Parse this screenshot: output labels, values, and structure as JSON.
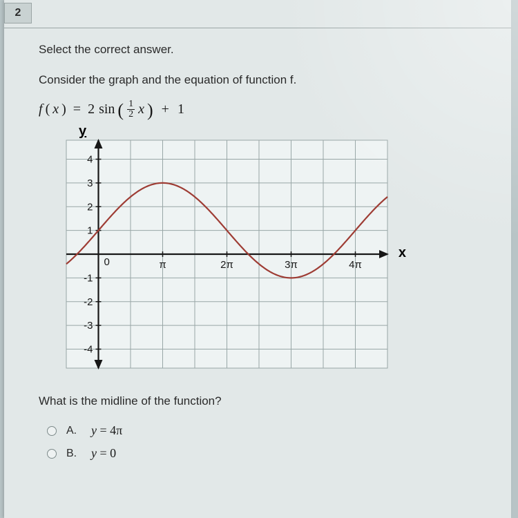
{
  "question_number": "2",
  "prompt": "Select the correct answer.",
  "subprompt": "Consider the graph and the equation of function f.",
  "equation": {
    "lhs_var": "f",
    "lhs_arg": "x",
    "eq": "=",
    "coef": "2",
    "func": "sin",
    "frac_num": "1",
    "frac_den": "2",
    "inner_var": "x",
    "plus": "+",
    "shift": "1"
  },
  "chart": {
    "type": "line",
    "y_axis_label": "y",
    "x_axis_label": "x",
    "plot_bg": "#eef3f3",
    "grid_color": "#98a6a6",
    "axis_color": "#171717",
    "curve_color": "#9e3c34",
    "curve_width": 2.2,
    "x_min_units": -0.5,
    "x_max_units": 4.5,
    "y_min": -4.8,
    "y_max": 4.8,
    "y_ticks": [
      4,
      3,
      2,
      1,
      -1,
      -2,
      -3,
      -4
    ],
    "y_tick_labels": [
      "4",
      "3",
      "2",
      "1",
      "-1",
      "-2",
      "-3",
      "-4"
    ],
    "x_ticks_units": [
      0,
      1,
      2,
      3,
      4
    ],
    "x_tick_labels": [
      "0",
      "π",
      "2π",
      "3π",
      "4π"
    ],
    "amplitude": 2,
    "vshift": 1,
    "period_units": 4
  },
  "question2": "What is the midline of the function?",
  "options": [
    {
      "letter": "A.",
      "text_var": "y",
      "text_eq": " = 4",
      "text_suffix_pi": "π"
    },
    {
      "letter": "B.",
      "text_var": "y",
      "text_eq": " = 0",
      "text_suffix_pi": ""
    }
  ]
}
